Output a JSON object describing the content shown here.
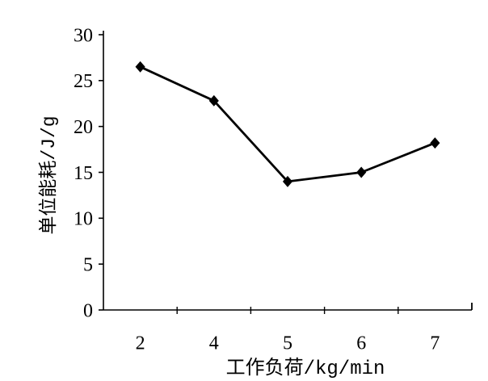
{
  "figure": {
    "background_color": "#ffffff",
    "ink_color": "#000000"
  },
  "chart_data": {
    "type": "line",
    "title": "",
    "xlabel": "工作负荷/kg/min",
    "ylabel": "单位能耗/J/g",
    "categories": [
      "2",
      "4",
      "5",
      "6",
      "7"
    ],
    "series": [
      {
        "name": "单位能耗",
        "values": [
          26.5,
          22.8,
          14,
          15,
          18.2
        ]
      }
    ],
    "ylim": [
      0,
      30
    ],
    "y_ticks": [
      0,
      5,
      10,
      15,
      20,
      25,
      30
    ],
    "grid": false,
    "legend_position": "none",
    "marker": "diamond",
    "line_color": "#000000",
    "marker_color": "#000000"
  }
}
